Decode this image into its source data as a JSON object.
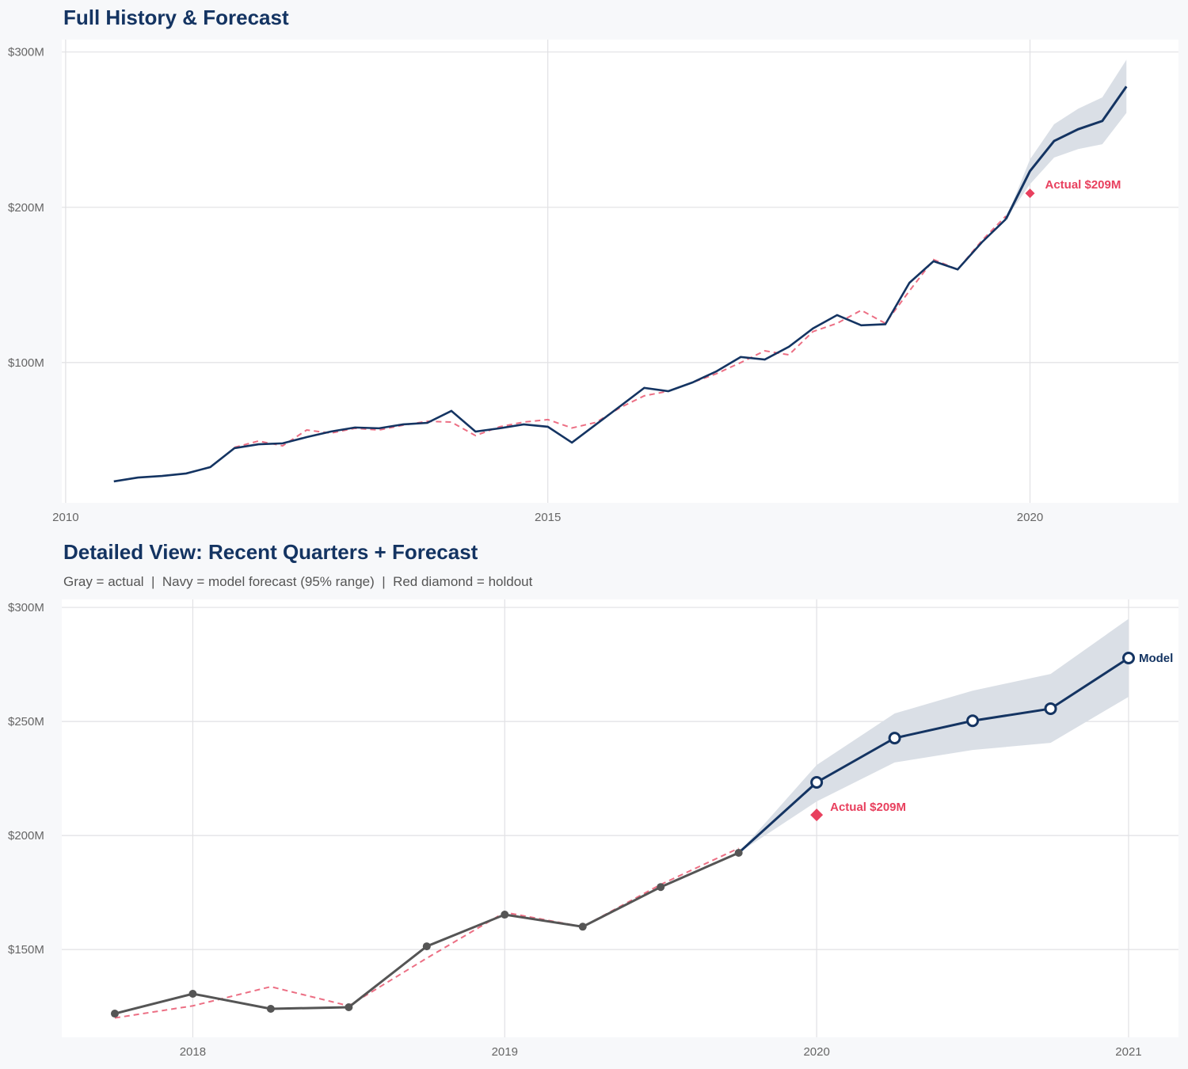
{
  "colors": {
    "navy": "#143462",
    "actual_gray": "#555555",
    "fit_red": "#ec6f84",
    "holdout_red": "#e8405e",
    "band": "#dadfe6"
  },
  "chart_data": [
    {
      "type": "line",
      "title": "Full History & Forecast",
      "xlim": [
        2009.96,
        2021.54
      ],
      "ylim": [
        9.7,
        308
      ],
      "x_ticks": [
        {
          "value": 2010,
          "label": "2010"
        },
        {
          "value": 2015,
          "label": "2015"
        },
        {
          "value": 2020,
          "label": "2020"
        }
      ],
      "y_ticks": [
        {
          "value": 100,
          "label": "$100M"
        },
        {
          "value": 200,
          "label": "$200M"
        },
        {
          "value": 300,
          "label": "$300M"
        }
      ],
      "grid": true,
      "history": {
        "x": [
          2010.5,
          2010.75,
          2011,
          2011.25,
          2011.5,
          2011.75,
          2012,
          2012.25,
          2012.5,
          2012.75,
          2013,
          2013.25,
          2013.5,
          2013.75,
          2014,
          2014.25,
          2014.5,
          2014.75,
          2015,
          2015.25,
          2015.5,
          2015.75,
          2016,
          2016.25,
          2016.5,
          2016.75,
          2017,
          2017.25,
          2017.5,
          2017.75,
          2018,
          2018.25,
          2018.5,
          2018.75,
          2019,
          2019.25,
          2019.5,
          2019.75
        ],
        "y": [
          23.5,
          26,
          27,
          28.6,
          32.7,
          44.9,
          47.4,
          48,
          52,
          55.6,
          58.2,
          57.7,
          60.2,
          61.2,
          68.9,
          55.6,
          57.7,
          60.2,
          58.7,
          48.5,
          60.2,
          71.9,
          83.7,
          81.6,
          87.2,
          94.4,
          103.6,
          102,
          110.2,
          122,
          130.6,
          124,
          124.7,
          151.4,
          165.3,
          160,
          177.4,
          192.4
        ]
      },
      "fitted": {
        "x": [
          2011.75,
          2012,
          2012.25,
          2012.5,
          2012.75,
          2013,
          2013.25,
          2013.5,
          2013.75,
          2014,
          2014.25,
          2014.5,
          2014.75,
          2015,
          2015.25,
          2015.5,
          2015.75,
          2016,
          2016.25,
          2016.5,
          2016.75,
          2017,
          2017.25,
          2017.5,
          2017.75,
          2018,
          2018.25,
          2018.5,
          2018.75,
          2019,
          2019.25,
          2019.5,
          2019.75
        ],
        "y": [
          45.4,
          49.5,
          46.4,
          56.6,
          54.6,
          57.7,
          56.6,
          59.7,
          62.2,
          61.7,
          53,
          58.7,
          61.7,
          63.3,
          57.9,
          61.5,
          71,
          78.6,
          81.6,
          87.2,
          92.9,
          100,
          107.6,
          105,
          120,
          125.3,
          133.7,
          125.3,
          146.2,
          166.3,
          160,
          178.5,
          194.4
        ]
      },
      "forecast": {
        "x": [
          2019.75,
          2020,
          2020.25,
          2020.5,
          2020.75,
          2021
        ],
        "y": [
          192.4,
          223.3,
          242.7,
          250.3,
          255.6,
          277.8
        ],
        "lower": [
          192.4,
          214.9,
          232,
          237.5,
          240.6,
          260.8
        ],
        "upper": [
          192.4,
          230.9,
          253.5,
          263.5,
          270.8,
          295
        ]
      },
      "holdout": {
        "x": 2020,
        "y": 209,
        "label": "Actual $209M"
      }
    },
    {
      "type": "line",
      "title": "Detailed View: Recent Quarters + Forecast",
      "subtitle": "Gray = actual  |  Navy = model forecast (95% range)  |  Red diamond = holdout",
      "xlim": [
        2017.58,
        2021.16
      ],
      "ylim": [
        111.5,
        303.5
      ],
      "x_ticks": [
        {
          "value": 2018,
          "label": "2018"
        },
        {
          "value": 2019,
          "label": "2019"
        },
        {
          "value": 2020,
          "label": "2020"
        },
        {
          "value": 2021,
          "label": "2021"
        }
      ],
      "y_ticks": [
        {
          "value": 150,
          "label": "$150M"
        },
        {
          "value": 200,
          "label": "$200M"
        },
        {
          "value": 250,
          "label": "$250M"
        },
        {
          "value": 300,
          "label": "$300M"
        }
      ],
      "grid": true,
      "actual": {
        "x": [
          2017.75,
          2018,
          2018.25,
          2018.5,
          2018.75,
          2019,
          2019.25,
          2019.5,
          2019.75
        ],
        "y": [
          121.9,
          130.6,
          124,
          124.7,
          151.4,
          165.3,
          160,
          177.4,
          192.4
        ]
      },
      "fitted": {
        "x": [
          2017.75,
          2018,
          2018.25,
          2018.5,
          2018.75,
          2019,
          2019.25,
          2019.5,
          2019.75
        ],
        "y": [
          120,
          125.3,
          133.7,
          125.3,
          146.2,
          166.3,
          160,
          178.5,
          194.4
        ]
      },
      "forecast": {
        "x": [
          2019.75,
          2020,
          2020.25,
          2020.5,
          2020.75,
          2021
        ],
        "y": [
          192.4,
          223.3,
          242.7,
          250.3,
          255.6,
          277.8
        ],
        "lower": [
          192.4,
          214.9,
          232,
          237.5,
          240.6,
          260.8
        ],
        "upper": [
          192.4,
          230.9,
          253.5,
          263.5,
          270.8,
          295
        ],
        "label": "Model"
      },
      "holdout": {
        "x": 2020,
        "y": 209,
        "label": "Actual $209M"
      }
    }
  ]
}
